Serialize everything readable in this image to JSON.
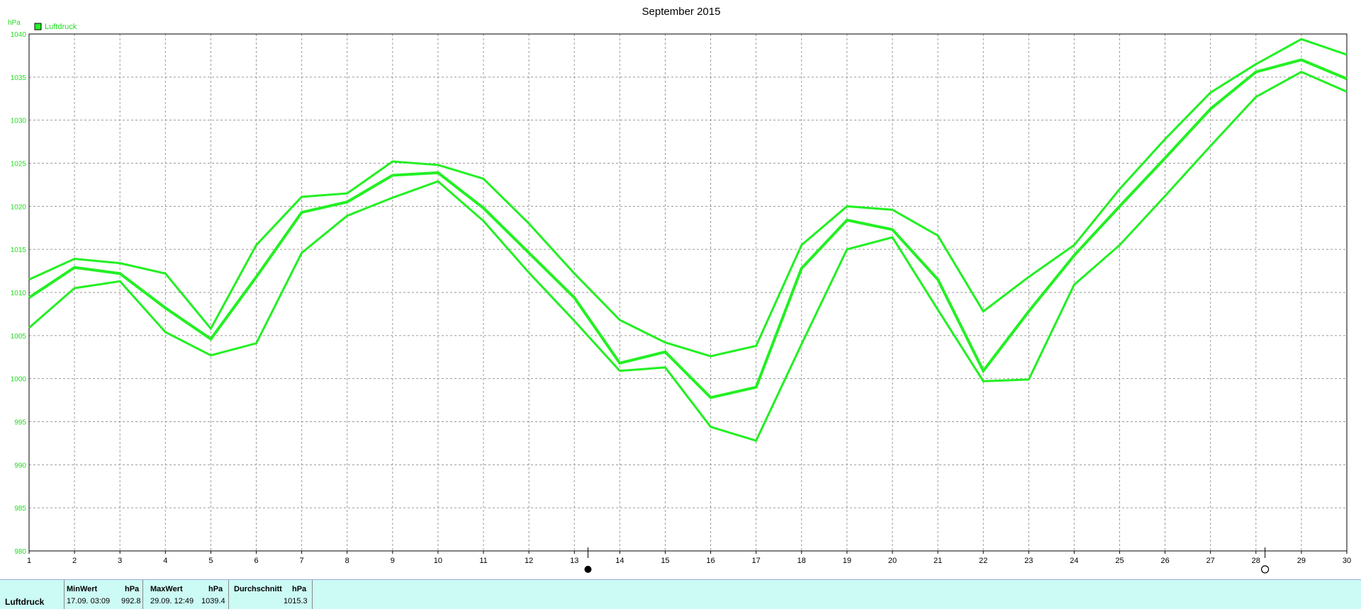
{
  "chart_data": {
    "type": "line",
    "title": "September 2015",
    "ylabel": "hPa",
    "xlabel": "",
    "legend": {
      "label": "Luftdruck",
      "placement": "top-left"
    },
    "x": [
      1,
      2,
      3,
      4,
      5,
      6,
      7,
      8,
      9,
      10,
      11,
      12,
      13,
      14,
      15,
      16,
      17,
      18,
      19,
      20,
      21,
      22,
      23,
      24,
      25,
      26,
      27,
      28,
      29,
      30
    ],
    "xlim": [
      1,
      30
    ],
    "ylim": [
      980,
      1040
    ],
    "yticks": [
      980,
      985,
      990,
      995,
      1000,
      1005,
      1010,
      1015,
      1020,
      1025,
      1030,
      1035,
      1040
    ],
    "grid": true,
    "color": "#22f022",
    "series": [
      {
        "role": "max",
        "values": [
          1011.5,
          1013.9,
          1013.4,
          1012.2,
          1005.8,
          1015.5,
          1021.1,
          1021.5,
          1025.2,
          1024.8,
          1023.2,
          1018.0,
          1012.2,
          1006.8,
          1004.2,
          1002.6,
          1003.8,
          1015.5,
          1020.0,
          1019.6,
          1016.6,
          1007.8,
          1011.8,
          1015.5,
          1022.0,
          1027.8,
          1033.2,
          1036.5,
          1039.4,
          1037.6
        ]
      },
      {
        "role": "mean",
        "values": [
          1009.4,
          1012.9,
          1012.2,
          1008.2,
          1004.6,
          1011.8,
          1019.3,
          1020.5,
          1023.6,
          1023.9,
          1019.8,
          1014.6,
          1009.4,
          1001.8,
          1003.1,
          997.8,
          999.0,
          1012.8,
          1018.4,
          1017.3,
          1011.5,
          1000.9,
          1007.8,
          1014.3,
          1020.0,
          1025.6,
          1031.3,
          1035.6,
          1037.0,
          1034.8
        ]
      },
      {
        "role": "min",
        "values": [
          1005.9,
          1010.5,
          1011.3,
          1005.4,
          1002.7,
          1004.1,
          1014.6,
          1018.9,
          1021.0,
          1022.9,
          1018.3,
          1012.3,
          1006.7,
          1000.9,
          1001.3,
          994.4,
          992.8,
          1004.0,
          1015.0,
          1016.4,
          1008.0,
          999.7,
          999.9,
          1010.9,
          1015.5,
          1021.2,
          1027.0,
          1032.7,
          1035.6,
          1033.3
        ]
      }
    ],
    "moon_markers": [
      {
        "day": 13.3,
        "phase": "new"
      },
      {
        "day": 28.2,
        "phase": "full"
      }
    ]
  },
  "stats": {
    "row_label": "Luftdruck",
    "min_header": "MinWert",
    "min_unit": "hPa",
    "min_time": "17.09.  03:09",
    "min_value": "992.8",
    "max_header": "MaxWert",
    "max_unit": "hPa",
    "max_time": "29.09.  12:49",
    "max_value": "1039.4",
    "avg_header": "Durchschnitt",
    "avg_unit": "hPa",
    "avg_value": "1015.3"
  }
}
